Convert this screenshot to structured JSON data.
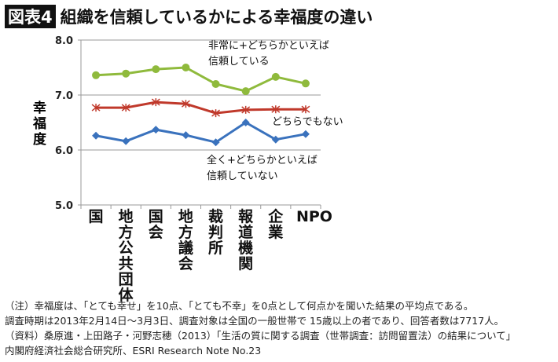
{
  "header": {
    "badge": "図表4",
    "title": "組織を信頼しているかによる幸福度の違い"
  },
  "chart_data": {
    "type": "line",
    "title": "組織を信頼しているかによる幸福度の違い",
    "ylabel": "幸福度",
    "ylim": [
      5.0,
      8.0
    ],
    "yticks": [
      "5.0",
      "6.0",
      "7.0",
      "8.0"
    ],
    "grid": true,
    "categories": [
      "国",
      "地方公共団体",
      "国会",
      "地方議会",
      "裁判所",
      "報道機関",
      "企業",
      "NPO"
    ],
    "series": [
      {
        "name": "非常に+どちらかといえば信頼している",
        "name_lines": [
          "非常に+どちらかといえば",
          "信頼している"
        ],
        "color": "#8fba3c",
        "marker": "circle",
        "values": [
          7.36,
          7.39,
          7.47,
          7.5,
          7.2,
          7.07,
          7.33,
          7.21
        ]
      },
      {
        "name": "どちらでもない",
        "name_lines": [
          "どちらでもない"
        ],
        "color": "#c0392b",
        "marker": "star",
        "values": [
          6.77,
          6.77,
          6.87,
          6.84,
          6.67,
          6.73,
          6.74,
          6.74
        ]
      },
      {
        "name": "全く+どちらかといえば信頼していない",
        "name_lines": [
          "全く+どちらかといえば",
          "信頼していない"
        ],
        "color": "#3a72bd",
        "marker": "diamond",
        "values": [
          6.26,
          6.16,
          6.37,
          6.27,
          6.14,
          6.5,
          6.19,
          6.29
        ]
      }
    ]
  },
  "notes": [
    "（注）幸福度は、「とても幸せ」を10点、「とても不幸」を0点として何点かを聞いた結果の平均点である。",
    "調査時期は2013年2月14日〜3月3日、調査対象は全国の一般世帯で 15歳以上の者であり、回答者数は7717人。",
    "（資料）桑原進・上田路子・河野志穂（2013）「生活の質に関する調査（世帯調査：訪問留置法）の結果について」",
    "内閣府経済社会総合研究所、ESRI Research Note No.23"
  ]
}
